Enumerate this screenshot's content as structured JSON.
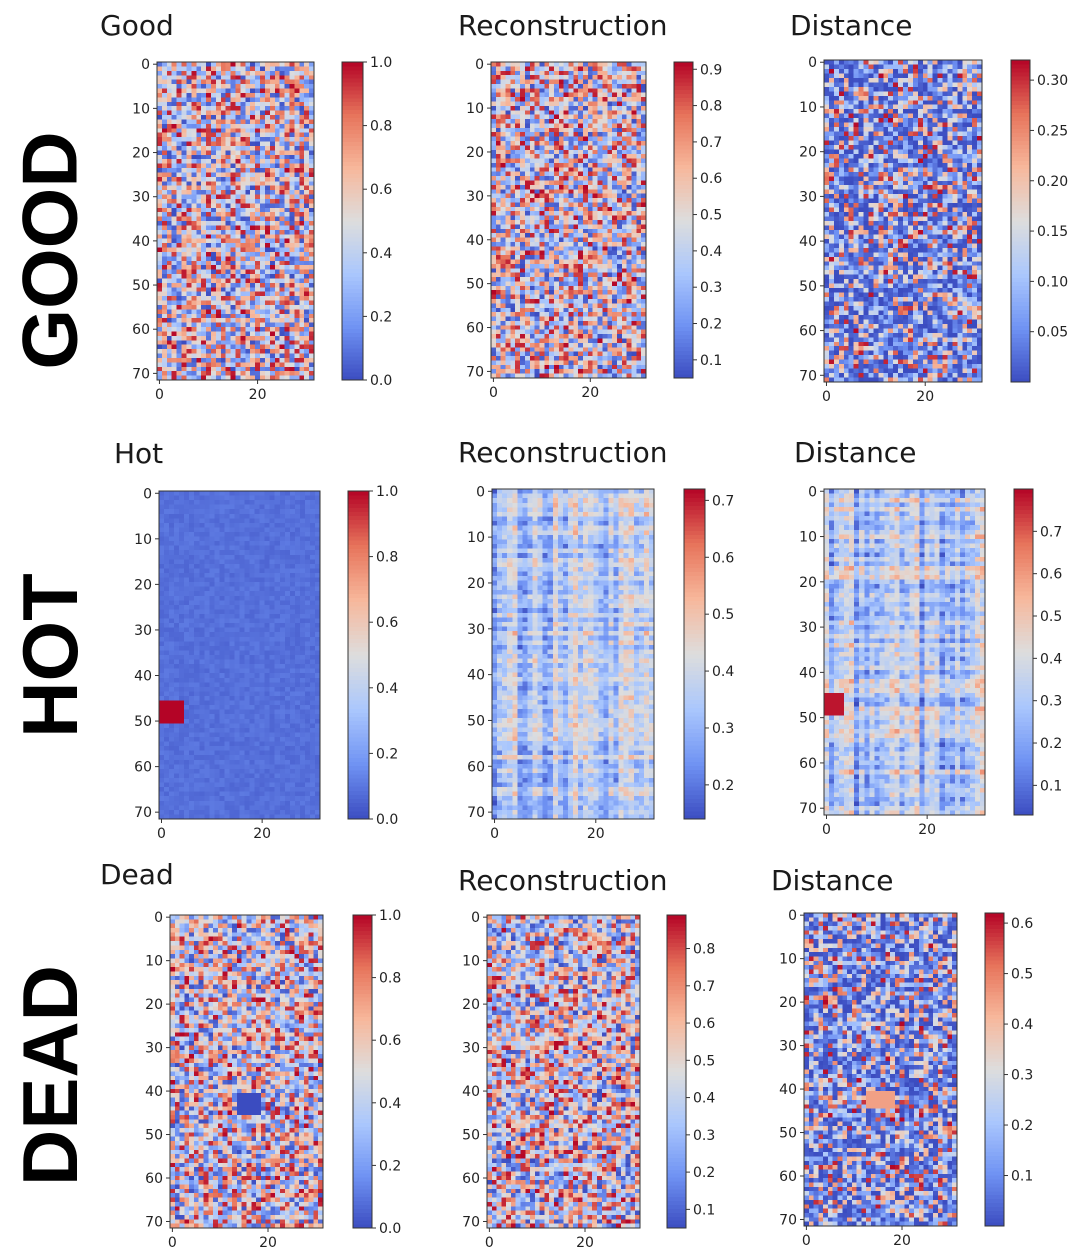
{
  "row_labels": [
    "GOOD",
    "HOT",
    "DEAD"
  ],
  "colors": {
    "cmap": [
      "#3b4cc0",
      "#6f92f3",
      "#aac7fd",
      "#dddddd",
      "#f7b89c",
      "#e7745b",
      "#b40426"
    ],
    "frame": "#333333",
    "text": "#1a1a1a"
  },
  "chart_data": [
    {
      "type": "heatmap",
      "title": "Good",
      "rows": 72,
      "cols": 32,
      "pattern": "random",
      "xticks": [
        0,
        20
      ],
      "yticks": [
        0,
        10,
        20,
        30,
        40,
        50,
        60,
        70
      ],
      "colorbar": {
        "min": 0.0,
        "max": 1.0,
        "ticks": [
          0.0,
          0.2,
          0.4,
          0.6,
          0.8,
          1.0
        ],
        "labels": [
          "0.0",
          "0.2",
          "0.4",
          "0.6",
          "0.8",
          "1.0"
        ]
      }
    },
    {
      "type": "heatmap",
      "title": "Reconstruction",
      "rows": 72,
      "cols": 32,
      "pattern": "random",
      "xticks": [
        0,
        20
      ],
      "yticks": [
        0,
        10,
        20,
        30,
        40,
        50,
        60,
        70
      ],
      "colorbar": {
        "min": 0.05,
        "max": 0.92,
        "ticks": [
          0.1,
          0.2,
          0.3,
          0.4,
          0.5,
          0.6,
          0.7,
          0.8,
          0.9
        ],
        "labels": [
          "0.1",
          "0.2",
          "0.3",
          "0.4",
          "0.5",
          "0.6",
          "0.7",
          "0.8",
          "0.9"
        ]
      }
    },
    {
      "type": "heatmap",
      "title": "Distance",
      "rows": 72,
      "cols": 32,
      "pattern": "random_low",
      "xticks": [
        0,
        20
      ],
      "yticks": [
        0,
        10,
        20,
        30,
        40,
        50,
        60,
        70
      ],
      "colorbar": {
        "min": 0.0,
        "max": 0.32,
        "ticks": [
          0.05,
          0.1,
          0.15,
          0.2,
          0.25,
          0.3
        ],
        "labels": [
          "0.05",
          "0.10",
          "0.15",
          "0.20",
          "0.25",
          "0.30"
        ]
      }
    },
    {
      "type": "heatmap",
      "title": "Hot",
      "rows": 72,
      "cols": 32,
      "pattern": "uniform_low",
      "anomaly": {
        "row_start": 46,
        "row_end": 51,
        "col_start": 0,
        "col_end": 5,
        "value": 1.0
      },
      "xticks": [
        0,
        20
      ],
      "yticks": [
        0,
        10,
        20,
        30,
        40,
        50,
        60,
        70
      ],
      "colorbar": {
        "min": 0.0,
        "max": 1.0,
        "ticks": [
          0.0,
          0.2,
          0.4,
          0.6,
          0.8,
          1.0
        ],
        "labels": [
          "0.0",
          "0.2",
          "0.4",
          "0.6",
          "0.8",
          "1.0"
        ]
      }
    },
    {
      "type": "heatmap",
      "title": "Reconstruction",
      "rows": 72,
      "cols": 32,
      "pattern": "structured",
      "xticks": [
        0,
        20
      ],
      "yticks": [
        0,
        10,
        20,
        30,
        40,
        50,
        60,
        70
      ],
      "colorbar": {
        "min": 0.14,
        "max": 0.72,
        "ticks": [
          0.2,
          0.3,
          0.4,
          0.5,
          0.6,
          0.7
        ],
        "labels": [
          "0.2",
          "0.3",
          "0.4",
          "0.5",
          "0.6",
          "0.7"
        ]
      }
    },
    {
      "type": "heatmap",
      "title": "Distance",
      "rows": 72,
      "cols": 32,
      "pattern": "structured",
      "anomaly": {
        "row_start": 45,
        "row_end": 50,
        "col_start": 0,
        "col_end": 4,
        "value": 0.78
      },
      "xticks": [
        0,
        20
      ],
      "yticks": [
        0,
        10,
        20,
        30,
        40,
        50,
        60,
        70
      ],
      "colorbar": {
        "min": 0.03,
        "max": 0.8,
        "ticks": [
          0.1,
          0.2,
          0.3,
          0.4,
          0.5,
          0.6,
          0.7
        ],
        "labels": [
          "0.1",
          "0.2",
          "0.3",
          "0.4",
          "0.5",
          "0.6",
          "0.7"
        ]
      }
    },
    {
      "type": "heatmap",
      "title": "Dead",
      "rows": 72,
      "cols": 32,
      "pattern": "random",
      "anomaly": {
        "row_start": 41,
        "row_end": 46,
        "col_start": 14,
        "col_end": 19,
        "value": 0.0
      },
      "xticks": [
        0,
        20
      ],
      "yticks": [
        0,
        10,
        20,
        30,
        40,
        50,
        60,
        70
      ],
      "colorbar": {
        "min": 0.0,
        "max": 1.0,
        "ticks": [
          0.0,
          0.2,
          0.4,
          0.6,
          0.8,
          1.0
        ],
        "labels": [
          "0.0",
          "0.2",
          "0.4",
          "0.6",
          "0.8",
          "1.0"
        ]
      }
    },
    {
      "type": "heatmap",
      "title": "Reconstruction",
      "rows": 72,
      "cols": 32,
      "pattern": "random",
      "xticks": [
        0,
        20
      ],
      "yticks": [
        0,
        10,
        20,
        30,
        40,
        50,
        60,
        70
      ],
      "colorbar": {
        "min": 0.05,
        "max": 0.89,
        "ticks": [
          0.1,
          0.2,
          0.3,
          0.4,
          0.5,
          0.6,
          0.7,
          0.8
        ],
        "labels": [
          "0.1",
          "0.2",
          "0.3",
          "0.4",
          "0.5",
          "0.6",
          "0.7",
          "0.8"
        ]
      }
    },
    {
      "type": "heatmap",
      "title": "Distance",
      "rows": 72,
      "cols": 32,
      "pattern": "random_low",
      "anomaly": {
        "row_start": 41,
        "row_end": 45,
        "col_start": 13,
        "col_end": 19,
        "value": 0.45
      },
      "xticks": [
        0,
        20
      ],
      "yticks": [
        0,
        10,
        20,
        30,
        40,
        50,
        60,
        70
      ],
      "colorbar": {
        "min": 0.0,
        "max": 0.62,
        "ticks": [
          0.1,
          0.2,
          0.3,
          0.4,
          0.5,
          0.6
        ],
        "labels": [
          "0.1",
          "0.2",
          "0.3",
          "0.4",
          "0.5",
          "0.6"
        ]
      }
    }
  ]
}
